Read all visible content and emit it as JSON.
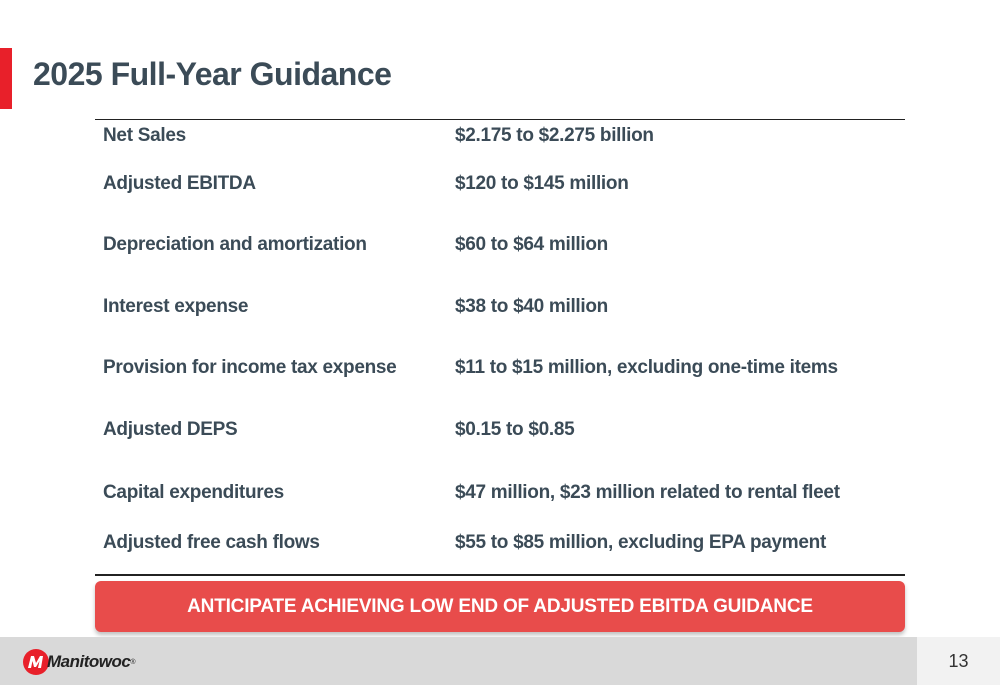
{
  "title": "2025 Full-Year Guidance",
  "accent_color": "#e8202a",
  "guidance": [
    {
      "label": "Net Sales",
      "value": "$2.175 to $2.275 billion"
    },
    {
      "label": "Adjusted EBITDA",
      "value": "$120 to $145 million"
    },
    {
      "label": "Depreciation and amortization",
      "value": "$60 to $64 million"
    },
    {
      "label": "Interest expense",
      "value": "$38 to $40 million"
    },
    {
      "label": "Provision for income tax expense",
      "value": "$11 to $15 million, excluding one-time items"
    },
    {
      "label": "Adjusted DEPS",
      "value": "$0.15 to $0.85"
    },
    {
      "label": "Capital expenditures",
      "value": "$47 million, $23 million related to rental fleet"
    },
    {
      "label": "Adjusted free cash flows",
      "value": "$55 to $85 million, excluding EPA payment"
    }
  ],
  "banner": {
    "text": "ANTICIPATE ACHIEVING LOW END OF ADJUSTED EBITDA GUIDANCE",
    "color": "#e84c4b"
  },
  "footer": {
    "logo_text": "Manitowoc",
    "logo_icon": "manitowoc-logo-icon",
    "page_number": "13"
  }
}
